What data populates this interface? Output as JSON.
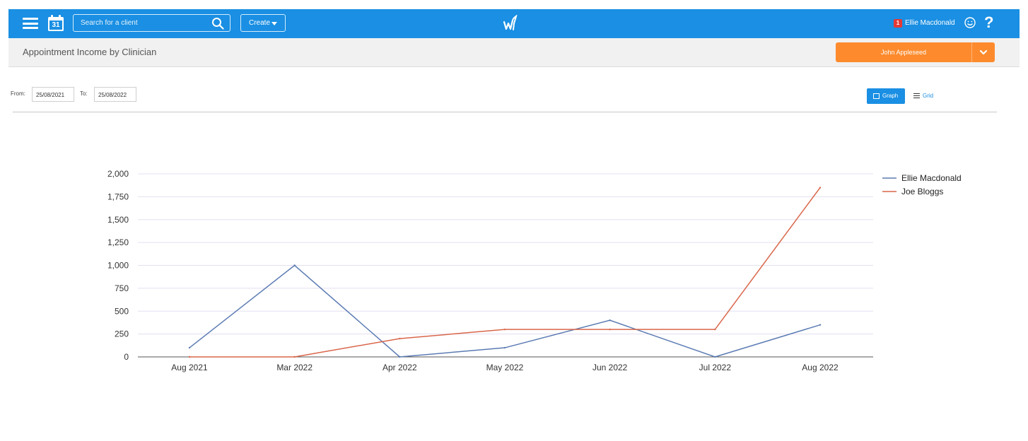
{
  "header": {
    "search_placeholder": "Search for a client",
    "create_label": "Create",
    "calendar_day": "31",
    "notification_count": "1",
    "user_name": "Ellie Macdonald",
    "help_label": "?",
    "accent_color": "#1a8fe3"
  },
  "subheader": {
    "title": "Appointment Income by Clinician",
    "clinician_selected": "John Appleseed",
    "clinician_color": "#fd8b2e"
  },
  "filters": {
    "from_label": "From:",
    "from_value": "25/08/2021",
    "to_label": "To:",
    "to_value": "25/08/2022",
    "graph_label": "Graph",
    "grid_label": "Grid"
  },
  "chart_data": {
    "type": "line",
    "categories": [
      "Aug 2021",
      "Mar 2022",
      "Apr 2022",
      "May 2022",
      "Jun 2022",
      "Jul 2022",
      "Aug 2022"
    ],
    "ylim": [
      0,
      2000
    ],
    "yticks": [
      0,
      250,
      500,
      750,
      1000,
      1250,
      1500,
      1750,
      2000
    ],
    "ytick_labels": [
      "0",
      "250",
      "500",
      "750",
      "1,000",
      "1,250",
      "1,500",
      "1,750",
      "2,000"
    ],
    "grid": true,
    "legend_position": "right",
    "series": [
      {
        "name": "Ellie Macdonald",
        "color": "#5b7bb3",
        "values": [
          100,
          1000,
          0,
          100,
          400,
          0,
          350
        ]
      },
      {
        "name": "Joe Bloggs",
        "color": "#d9664a",
        "values": [
          0,
          0,
          200,
          300,
          300,
          300,
          1850
        ]
      }
    ]
  }
}
